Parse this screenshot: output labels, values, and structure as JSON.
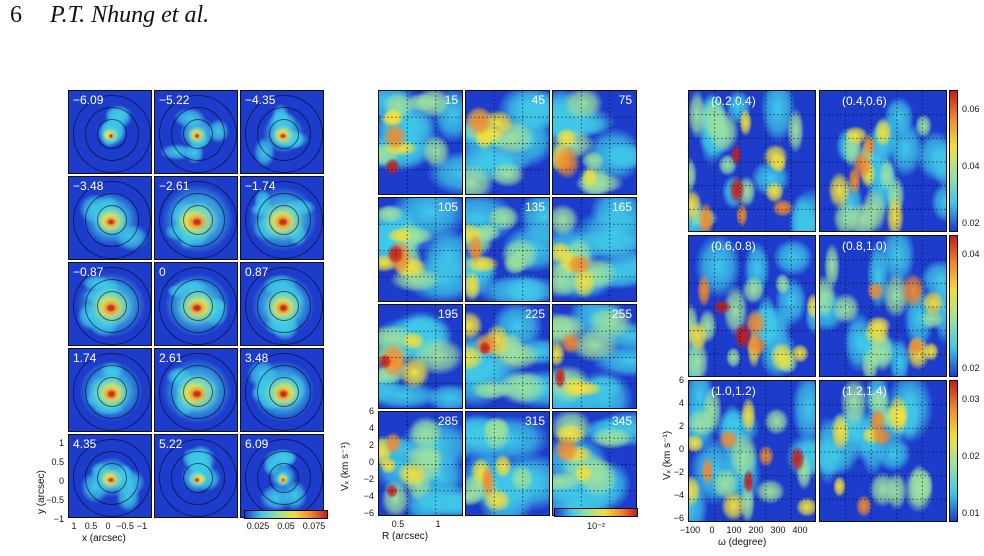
{
  "header": {
    "page_number": "6",
    "authors": "P.T. Nhung et al."
  },
  "colors": {
    "low": "#1e3ccc",
    "mid": "#3fc8e8",
    "green": "#9be0a0",
    "yellow": "#f0e040",
    "orange": "#f08a30",
    "high": "#c41c1c"
  },
  "left_panel": {
    "labels": [
      "−6.09",
      "−5.22",
      "−4.35",
      "−3.48",
      "−2.61",
      "−1.74",
      "−0.87",
      "0",
      "0.87",
      "1.74",
      "2.61",
      "3.48",
      "4.35",
      "5.22",
      "6.09"
    ],
    "y_axis": {
      "label": "y (arcsec)",
      "ticks": [
        "1",
        "0.5",
        "0",
        "−0.5",
        "−1"
      ]
    },
    "x_axis": {
      "label": "x (arcsec)",
      "ticks": [
        "1",
        "0.5",
        "0",
        "−0.5",
        "−1"
      ]
    },
    "colorbar_ticks": [
      "0.025",
      "0.05",
      "0.075"
    ]
  },
  "middle_panel": {
    "labels": [
      "15",
      "45",
      "75",
      "105",
      "135",
      "165",
      "195",
      "225",
      "255",
      "285",
      "315",
      "345"
    ],
    "y_axis": {
      "label": "Vₓ (km s⁻¹)",
      "ticks": [
        "6",
        "4",
        "2",
        "0",
        "−2",
        "−4",
        "−6"
      ]
    },
    "x_axis": {
      "label": "R (arcsec)",
      "ticks": [
        "0.5",
        "1"
      ]
    },
    "colorbar_label": "10⁻²"
  },
  "right_panel": {
    "labels": [
      "(0.2,0.4)",
      "(0.4,0.6)",
      "(0.6,0.8)",
      "(0.8,1.0)",
      "(1.0,1.2)",
      "(1.2,1.4)"
    ],
    "y_axis": {
      "label": "Vₓ (km s⁻¹)",
      "ticks": [
        "6",
        "4",
        "2",
        "0",
        "−2",
        "−4",
        "−6"
      ]
    },
    "x_axis": {
      "label": "ω (degree)",
      "ticks": [
        "−100",
        "0",
        "100",
        "200",
        "300",
        "400"
      ]
    },
    "colorbar_ticks": [
      [
        "0.06",
        "0.04",
        "0.02"
      ],
      [
        "0.04",
        "0.02"
      ],
      [
        "0.03",
        "0.02",
        "0.01"
      ]
    ]
  }
}
